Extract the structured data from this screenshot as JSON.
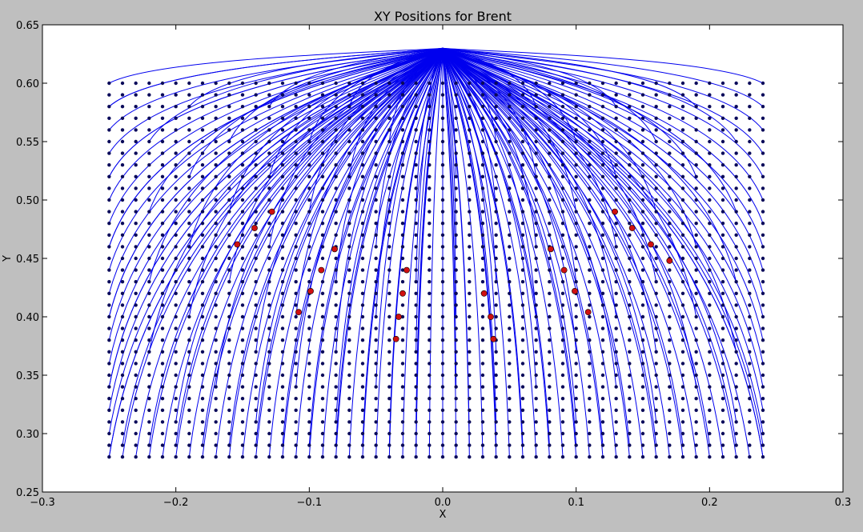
{
  "window": {
    "title": "XY Positions for Brent"
  },
  "chart_data": {
    "type": "scatter",
    "title": "XY Positions for Brent",
    "xlabel": "X",
    "ylabel": "Y",
    "xlim": [
      -0.3,
      0.3
    ],
    "ylim": [
      0.25,
      0.65
    ],
    "xticks": [
      -0.3,
      -0.2,
      -0.1,
      0.0,
      0.1,
      0.2,
      0.3
    ],
    "xtick_labels": [
      "−0.3",
      "−0.2",
      "−0.1",
      "0.0",
      "0.1",
      "0.2",
      "0.3"
    ],
    "yticks": [
      0.25,
      0.3,
      0.35,
      0.4,
      0.45,
      0.5,
      0.55,
      0.6,
      0.65
    ],
    "ytick_labels": [
      "0.25",
      "0.30",
      "0.35",
      "0.40",
      "0.45",
      "0.50",
      "0.55",
      "0.60",
      "0.65"
    ],
    "grid": false,
    "legend": null,
    "colors": {
      "background": "#bfbfbf",
      "plot_area": "#ffffff",
      "grid_points": "#0a0a5a",
      "trajectories": "#0000ee",
      "sources": "#d01010"
    },
    "series": [
      {
        "kind": "grid_points",
        "description": "start positions on a regular lattice",
        "x_range": [
          -0.25,
          0.24
        ],
        "x_step": 0.01,
        "y_range": [
          0.28,
          0.6
        ],
        "y_step": 0.01
      },
      {
        "kind": "trajectories",
        "description": "curved paths from grid positions converging to a common endpoint",
        "end_point": [
          0.0,
          0.63
        ]
      },
      {
        "kind": "red_points",
        "points": [
          [
            -0.154,
            0.462
          ],
          [
            -0.141,
            0.476
          ],
          [
            -0.128,
            0.49
          ],
          [
            -0.081,
            0.458
          ],
          [
            -0.091,
            0.44
          ],
          [
            -0.099,
            0.422
          ],
          [
            -0.108,
            0.404
          ],
          [
            -0.035,
            0.381
          ],
          [
            -0.033,
            0.4
          ],
          [
            -0.03,
            0.42
          ],
          [
            -0.027,
            0.44
          ],
          [
            0.038,
            0.381
          ],
          [
            0.036,
            0.4
          ],
          [
            0.031,
            0.42
          ],
          [
            0.081,
            0.458
          ],
          [
            0.091,
            0.44
          ],
          [
            0.099,
            0.422
          ],
          [
            0.109,
            0.404
          ],
          [
            0.129,
            0.49
          ],
          [
            0.142,
            0.476
          ],
          [
            0.156,
            0.462
          ],
          [
            0.17,
            0.448
          ]
        ]
      }
    ]
  }
}
